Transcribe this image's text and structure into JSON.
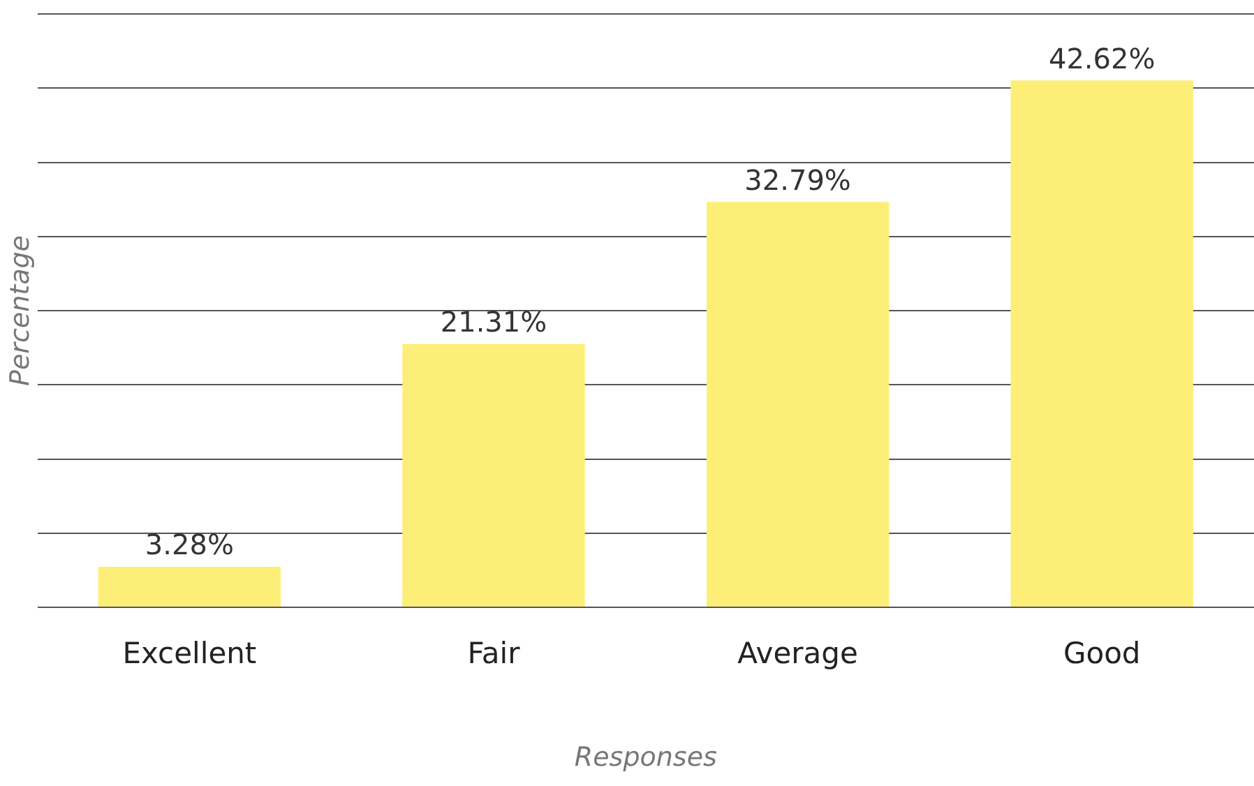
{
  "chart_data": {
    "type": "bar",
    "xlabel": "Responses",
    "ylabel": "Percentage",
    "categories": [
      "Excellent",
      "Fair",
      "Average",
      "Good"
    ],
    "values": [
      3.28,
      21.31,
      32.79,
      42.62
    ],
    "value_labels": [
      "3.28%",
      "21.31%",
      "32.79%",
      "42.62%"
    ],
    "color": "#fdee78",
    "ylim": [
      0,
      48
    ],
    "yticks": [
      {
        "value": 0,
        "label": null
      },
      {
        "value": 6,
        "label": null
      },
      {
        "value": 12,
        "label": null
      },
      {
        "value": 18,
        "label": null
      },
      {
        "value": 24,
        "label": null
      },
      {
        "value": 30,
        "label": null
      },
      {
        "value": 36,
        "label": null
      },
      {
        "value": 42,
        "label": null
      },
      {
        "value": 48,
        "label": null
      }
    ],
    "grid": "y",
    "legend": false,
    "tick_labels": "x"
  }
}
